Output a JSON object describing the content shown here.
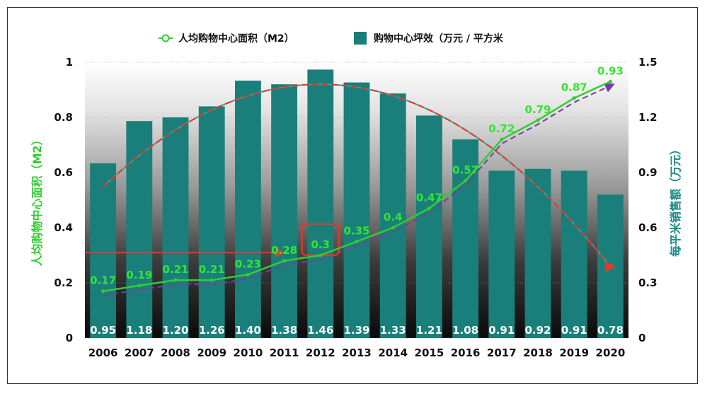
{
  "chart_data": {
    "type": "bar",
    "categories": [
      "2006",
      "2007",
      "2008",
      "2009",
      "2010",
      "2011",
      "2012",
      "2013",
      "2014",
      "2015",
      "2016",
      "2017",
      "2018",
      "2019",
      "2020"
    ],
    "series": [
      {
        "name": "购物中心坪效（万元 / 平方米",
        "axis": "right",
        "type": "bar",
        "color": "#1a7f7a",
        "values": [
          0.95,
          1.18,
          1.2,
          1.26,
          1.4,
          1.38,
          1.46,
          1.39,
          1.33,
          1.21,
          1.08,
          0.91,
          0.92,
          0.91,
          0.78
        ],
        "labels": [
          "0.95",
          "1.18",
          "1.20",
          "1.26",
          "1.40",
          "1.38",
          "1.46",
          "1.39",
          "1.33",
          "1.21",
          "1.08",
          "0.91",
          "0.92",
          "0.91",
          "0.78"
        ]
      },
      {
        "name": "人均购物中心面积（M2）",
        "axis": "left",
        "type": "line",
        "color": "#33cc33",
        "values": [
          0.17,
          0.19,
          0.21,
          0.21,
          0.23,
          0.28,
          0.3,
          0.35,
          0.4,
          0.47,
          0.57,
          0.72,
          0.79,
          0.87,
          0.93
        ],
        "labels": [
          "0.17",
          "0.19",
          "0.21",
          "0.21",
          "0.23",
          "0.28",
          "0.3",
          "0.35",
          "0.4",
          "0.47",
          "0.57",
          "0.72",
          "0.79",
          "0.87",
          "0.93"
        ]
      }
    ],
    "left_axis": {
      "title": "人均购物中心面积（M2）",
      "ylim": [
        0,
        1
      ],
      "ticks": [
        "0",
        "0.2",
        "0.4",
        "0.6",
        "0.8",
        "1"
      ]
    },
    "right_axis": {
      "title": "每平米销售额（万元）",
      "ylim": [
        0,
        1.5
      ],
      "ticks": [
        "0",
        "0.3",
        "0.6",
        "0.9",
        "1.2",
        "1.5"
      ]
    },
    "legend": {
      "position": "top",
      "items": [
        "人均购物中心面积（M2）",
        "购物中心坪效（万元 / 平方米"
      ]
    },
    "highlight_label": "0.3",
    "colors": {
      "bar": "#1a7f7a",
      "line": "#33cc33",
      "trend_red": "#e8382a",
      "trend_purple": "#7a3aa6",
      "trend_teal": "#2aa8a0",
      "highlight": "#e8382a"
    }
  }
}
